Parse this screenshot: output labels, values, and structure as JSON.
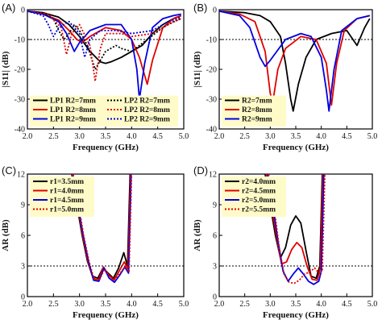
{
  "chart_data": [
    {
      "panel": "(A)",
      "type": "line",
      "xlabel": "Frequency (GHz)",
      "ylabel": "|S11| (dB)",
      "xlim": [
        2.0,
        5.0
      ],
      "ylim": [
        -40,
        0
      ],
      "xticks": [
        "2.0",
        "2.5",
        "3.0",
        "3.5",
        "4.0",
        "4.5",
        "5.0"
      ],
      "yticks": [
        "0",
        "-10",
        "-20",
        "-30",
        "-40"
      ],
      "reference_line": -10,
      "legend_placement": "bottom-left",
      "legend_columns": 2,
      "series": [
        {
          "name": "LP1  R2=7mm",
          "color": "#000000",
          "dash": "solid",
          "x": [
            2.0,
            2.3,
            2.6,
            2.8,
            3.0,
            3.2,
            3.4,
            3.5,
            3.6,
            3.8,
            4.0,
            4.2,
            4.4,
            4.6,
            4.8,
            4.95
          ],
          "y": [
            -0.5,
            -1.0,
            -2.5,
            -5.0,
            -9.0,
            -14.0,
            -17.5,
            -18.0,
            -17.5,
            -16.0,
            -14.0,
            -12.0,
            -8.0,
            -5.0,
            -3.0,
            -2.0
          ]
        },
        {
          "name": "LP1  R2=8mm",
          "color": "#e00000",
          "dash": "solid",
          "x": [
            2.0,
            2.3,
            2.6,
            2.8,
            2.95,
            3.05,
            3.2,
            3.5,
            3.8,
            4.0,
            4.15,
            4.3,
            4.4,
            4.6,
            4.8,
            4.95
          ],
          "y": [
            -0.5,
            -1.5,
            -3.5,
            -7.0,
            -10.0,
            -11.0,
            -9.0,
            -6.0,
            -7.0,
            -10.0,
            -16.0,
            -25.0,
            -17.0,
            -6.0,
            -3.0,
            -2.0
          ]
        },
        {
          "name": "LP1  R2=9mm",
          "color": "#0000e0",
          "dash": "solid",
          "x": [
            2.0,
            2.3,
            2.6,
            2.75,
            2.9,
            3.0,
            3.2,
            3.5,
            3.8,
            4.0,
            4.1,
            4.15,
            4.25,
            4.4,
            4.6,
            4.8,
            4.95
          ],
          "y": [
            -0.5,
            -1.5,
            -4.0,
            -8.0,
            -14.0,
            -11.0,
            -7.0,
            -5.0,
            -5.0,
            -10.0,
            -20.0,
            -30.0,
            -18.0,
            -6.0,
            -3.0,
            -2.0,
            -1.5
          ]
        },
        {
          "name": "LP2  R2=7mm",
          "color": "#000000",
          "dash": "dotted",
          "x": [
            2.0,
            2.3,
            2.5,
            2.6,
            2.7,
            2.8,
            2.9,
            3.0,
            3.15,
            3.3,
            3.5,
            3.7,
            3.8,
            4.0,
            4.3,
            4.6,
            4.8,
            4.95
          ],
          "y": [
            -0.5,
            -1.0,
            -3.0,
            -7.0,
            -10.0,
            -8.0,
            -5.0,
            -7.0,
            -12.0,
            -20.0,
            -14.0,
            -12.0,
            -13.0,
            -14.0,
            -10.0,
            -6.0,
            -4.0,
            -3.0
          ]
        },
        {
          "name": "LP2  R2=8mm",
          "color": "#e00000",
          "dash": "dotted",
          "x": [
            2.0,
            2.4,
            2.65,
            2.75,
            2.85,
            3.0,
            3.2,
            3.3,
            3.4,
            3.5,
            3.8,
            4.0,
            4.4,
            4.7,
            4.95
          ],
          "y": [
            -0.5,
            -1.5,
            -6.0,
            -15.0,
            -8.0,
            -5.0,
            -12.0,
            -24.0,
            -13.0,
            -8.0,
            -8.0,
            -9.0,
            -8.0,
            -5.0,
            -3.0
          ]
        },
        {
          "name": "LP2  R2=9mm",
          "color": "#0000e0",
          "dash": "dotted",
          "x": [
            2.0,
            2.3,
            2.4,
            2.5,
            2.6,
            2.8,
            3.0,
            3.1,
            3.2,
            3.4,
            3.7,
            4.0,
            4.4,
            4.7,
            4.95
          ],
          "y": [
            -0.5,
            -2.0,
            -5.0,
            -9.0,
            -6.0,
            -4.0,
            -8.0,
            -16.0,
            -10.0,
            -7.0,
            -7.0,
            -8.0,
            -7.0,
            -4.0,
            -2.5
          ]
        }
      ]
    },
    {
      "panel": "(B)",
      "type": "line",
      "xlabel": "Frequency (GHz)",
      "ylabel": "|S11| (dB)",
      "xlim": [
        2.0,
        5.0
      ],
      "ylim": [
        -40,
        0
      ],
      "xticks": [
        "2.0",
        "2.5",
        "3.0",
        "3.5",
        "4.0",
        "4.5",
        "5.0"
      ],
      "yticks": [
        "0",
        "-10",
        "-20",
        "-30",
        "-40"
      ],
      "reference_line": -10,
      "legend_placement": "bottom-left",
      "legend_columns": 1,
      "series": [
        {
          "name": "R2=7mm",
          "color": "#000000",
          "dash": "solid",
          "x": [
            2.0,
            2.5,
            2.8,
            3.0,
            3.2,
            3.3,
            3.4,
            3.45,
            3.55,
            3.7,
            3.9,
            4.2,
            4.5,
            4.7,
            4.85,
            4.95
          ],
          "y": [
            -0.5,
            -1.0,
            -2.0,
            -4.0,
            -9.0,
            -18.0,
            -30.0,
            -34.0,
            -25.0,
            -16.0,
            -10.0,
            -8.0,
            -7.0,
            -12.0,
            -6.0,
            -3.0
          ]
        },
        {
          "name": "R2=8mm",
          "color": "#e00000",
          "dash": "solid",
          "x": [
            2.0,
            2.4,
            2.7,
            2.9,
            3.0,
            3.05,
            3.15,
            3.3,
            3.6,
            3.9,
            4.1,
            4.2,
            4.3,
            4.45,
            4.7,
            4.95
          ],
          "y": [
            -0.5,
            -1.5,
            -4.0,
            -14.0,
            -28.0,
            -31.0,
            -20.0,
            -13.0,
            -9.0,
            -10.0,
            -18.0,
            -32.0,
            -18.0,
            -7.0,
            -3.0,
            -2.0
          ]
        },
        {
          "name": "R2=9mm",
          "color": "#0000e0",
          "dash": "solid",
          "x": [
            2.0,
            2.4,
            2.6,
            2.8,
            2.9,
            3.0,
            3.3,
            3.6,
            3.8,
            4.0,
            4.1,
            4.15,
            4.25,
            4.4,
            4.7,
            4.95
          ],
          "y": [
            -0.5,
            -2.0,
            -6.0,
            -16.0,
            -19.0,
            -17.0,
            -10.0,
            -8.0,
            -9.0,
            -16.0,
            -27.0,
            -34.0,
            -20.0,
            -7.0,
            -3.0,
            -2.0
          ]
        }
      ]
    },
    {
      "panel": "(C)",
      "type": "line",
      "xlabel": "Frequency (GHz)",
      "ylabel": "AR (dB)",
      "xlim": [
        2.0,
        5.0
      ],
      "ylim": [
        0,
        12
      ],
      "xticks": [
        "2.0",
        "2.5",
        "3.0",
        "3.5",
        "4.0",
        "4.5",
        "5.0"
      ],
      "yticks": [
        "0",
        "3",
        "6",
        "9",
        "12"
      ],
      "reference_line": 3,
      "legend_placement": "top-left",
      "legend_columns": 1,
      "series": [
        {
          "name": "r1=3.5mm",
          "color": "#000000",
          "dash": "solid",
          "x": [
            2.85,
            2.95,
            3.05,
            3.15,
            3.25,
            3.35,
            3.45,
            3.55,
            3.65,
            3.75,
            3.85,
            3.92,
            3.97
          ],
          "y": [
            12.0,
            9.0,
            6.0,
            3.5,
            2.0,
            1.8,
            2.8,
            2.3,
            1.8,
            2.8,
            4.3,
            3.0,
            12.0
          ]
        },
        {
          "name": "r1=4.0mm",
          "color": "#e00000",
          "dash": "solid",
          "x": [
            2.86,
            2.96,
            3.06,
            3.16,
            3.26,
            3.36,
            3.46,
            3.56,
            3.66,
            3.76,
            3.86,
            3.93,
            3.98
          ],
          "y": [
            12.0,
            9.0,
            6.0,
            3.5,
            1.8,
            1.6,
            2.9,
            2.1,
            1.6,
            2.5,
            3.4,
            2.7,
            12.0
          ]
        },
        {
          "name": "r1=4.5mm",
          "color": "#0000e0",
          "dash": "solid",
          "x": [
            2.87,
            2.97,
            3.07,
            3.17,
            3.27,
            3.37,
            3.47,
            3.57,
            3.67,
            3.77,
            3.87,
            3.94,
            3.99
          ],
          "y": [
            12.0,
            9.0,
            6.0,
            3.5,
            1.6,
            1.5,
            2.8,
            1.8,
            1.4,
            2.1,
            2.9,
            2.3,
            12.0
          ]
        },
        {
          "name": "r1=5.0mm",
          "color": "#e00000",
          "dash": "dotted",
          "x": [
            2.88,
            2.98,
            3.08,
            3.18,
            3.28,
            3.38,
            3.48,
            3.58,
            3.68,
            3.78,
            3.88,
            3.95,
            4.0
          ],
          "y": [
            12.0,
            9.0,
            6.0,
            3.5,
            1.7,
            1.6,
            2.7,
            2.0,
            1.7,
            2.3,
            3.0,
            2.4,
            12.0
          ]
        }
      ]
    },
    {
      "panel": "(D)",
      "type": "line",
      "xlabel": "Frequency (GHz)",
      "ylabel": "AR (dB)",
      "xlim": [
        2.0,
        5.0
      ],
      "ylim": [
        0,
        12
      ],
      "xticks": [
        "2.0",
        "2.5",
        "3.0",
        "3.5",
        "4.0",
        "4.5",
        "5.0"
      ],
      "yticks": [
        "0",
        "3",
        "6",
        "9",
        "12"
      ],
      "reference_line": 3,
      "legend_placement": "top-left",
      "legend_columns": 1,
      "series": [
        {
          "name": "r2=4.0mm",
          "color": "#000000",
          "dash": "solid",
          "x": [
            2.9,
            3.0,
            3.1,
            3.2,
            3.3,
            3.4,
            3.5,
            3.6,
            3.7,
            3.8,
            3.9,
            3.97,
            4.02
          ],
          "y": [
            12.0,
            9.0,
            6.0,
            3.8,
            4.8,
            7.0,
            7.9,
            7.2,
            4.5,
            2.0,
            1.8,
            3.0,
            12.0
          ]
        },
        {
          "name": "r2=4.5mm",
          "color": "#e00000",
          "dash": "solid",
          "x": [
            2.92,
            3.02,
            3.12,
            3.22,
            3.32,
            3.42,
            3.52,
            3.62,
            3.72,
            3.82,
            3.92,
            3.98,
            4.03
          ],
          "y": [
            12.0,
            9.0,
            6.0,
            3.2,
            3.4,
            4.6,
            5.3,
            4.8,
            3.0,
            1.7,
            1.6,
            2.8,
            12.0
          ]
        },
        {
          "name": "r2=5.0mm",
          "color": "#0000e0",
          "dash": "solid",
          "x": [
            2.95,
            3.05,
            3.15,
            3.25,
            3.35,
            3.45,
            3.55,
            3.65,
            3.75,
            3.85,
            3.95,
            4.0,
            4.05
          ],
          "y": [
            12.0,
            9.0,
            5.5,
            2.5,
            1.5,
            2.2,
            2.8,
            2.2,
            1.5,
            1.2,
            1.5,
            2.5,
            12.0
          ]
        },
        {
          "name": "r2=5.5mm",
          "color": "#e00000",
          "dash": "dotted",
          "x": [
            2.97,
            3.07,
            3.17,
            3.27,
            3.37,
            3.47,
            3.57,
            3.67,
            3.77,
            3.87,
            3.97,
            4.02,
            4.07
          ],
          "y": [
            12.0,
            9.0,
            5.0,
            2.2,
            1.4,
            1.3,
            1.6,
            2.2,
            2.4,
            2.8,
            2.2,
            2.6,
            12.0
          ]
        }
      ]
    }
  ]
}
